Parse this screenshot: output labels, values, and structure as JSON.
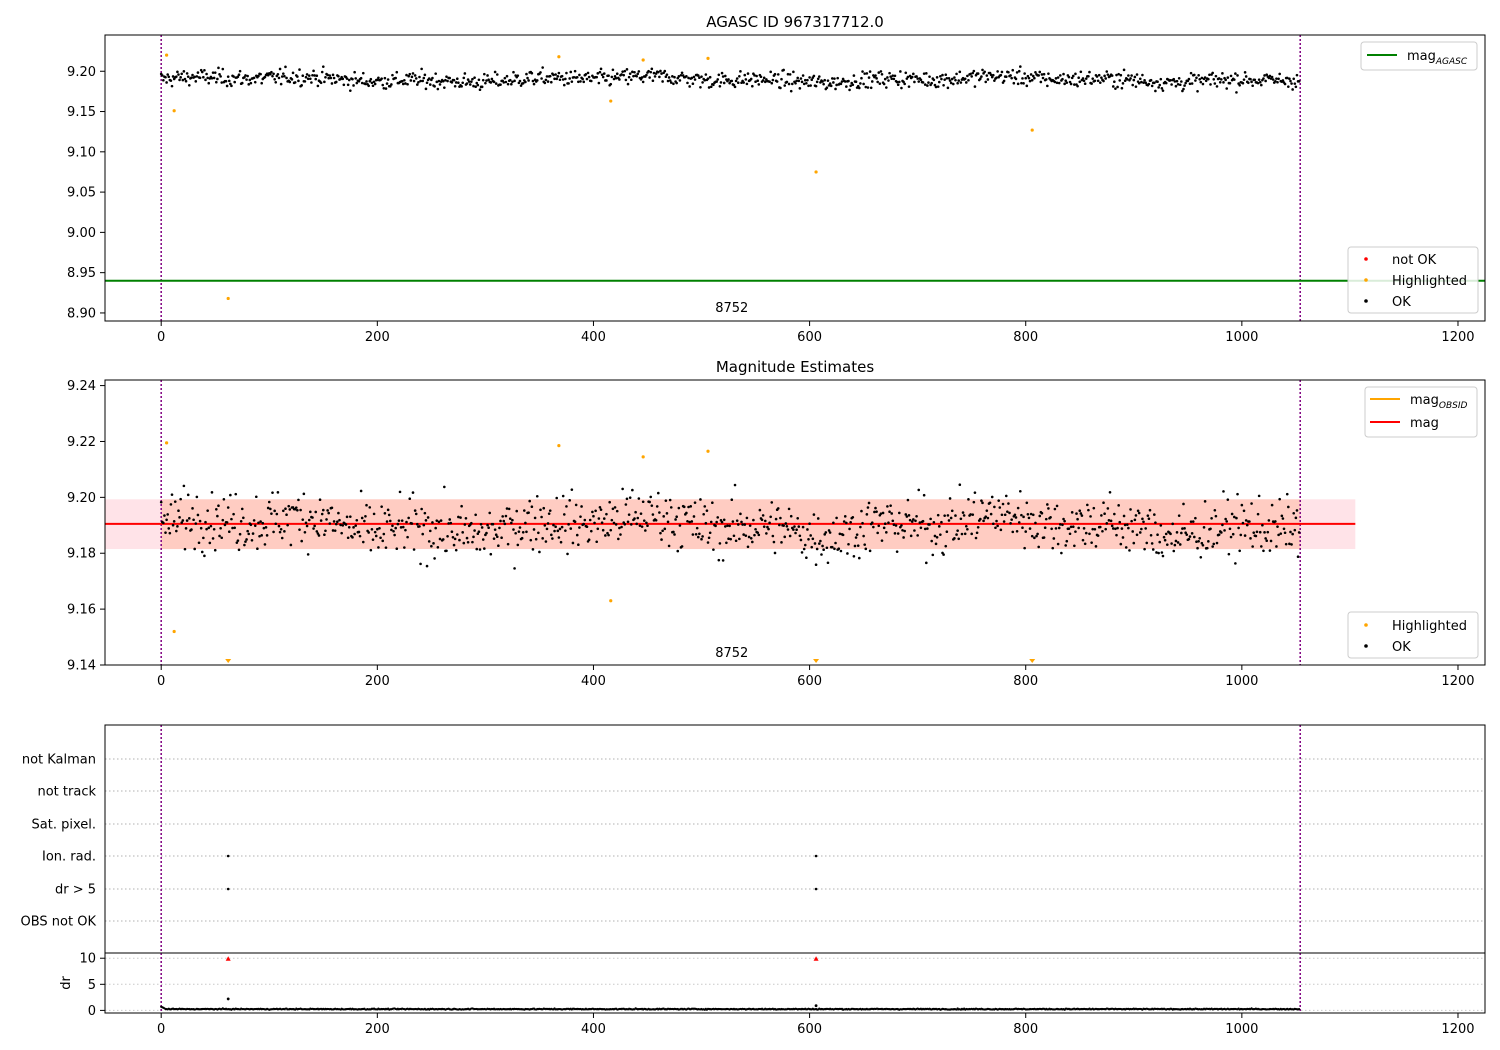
{
  "chart_data": [
    {
      "type": "scatter",
      "title": "AGASC ID 967317712.0",
      "xlim": [
        -52,
        1225
      ],
      "ylim": [
        8.89,
        9.245
      ],
      "xticks": [
        0,
        200,
        400,
        600,
        800,
        1000,
        1200
      ],
      "yticks": [
        8.9,
        8.95,
        9.0,
        9.05,
        9.1,
        9.15,
        9.2
      ],
      "ytick_labels": [
        "8.90",
        "8.95",
        "9.00",
        "9.05",
        "9.10",
        "9.15",
        "9.20"
      ],
      "obsid_text": "8752",
      "obsid_text_x": 528,
      "obs_bounds": [
        0,
        1054
      ],
      "mag_agasc": 8.94,
      "ok_points": {
        "n": 1054,
        "mean": 9.19,
        "spread": 0.0085
      },
      "highlighted_points": [
        {
          "x": 5,
          "y": 9.22
        },
        {
          "x": 12,
          "y": 9.151
        },
        {
          "x": 62,
          "y": 8.918
        },
        {
          "x": 368,
          "y": 9.218
        },
        {
          "x": 416,
          "y": 9.163
        },
        {
          "x": 446,
          "y": 9.214
        },
        {
          "x": 506,
          "y": 9.216
        },
        {
          "x": 606,
          "y": 9.075
        },
        {
          "x": 806,
          "y": 9.127
        }
      ],
      "legend_upper": [
        {
          "label": "mag",
          "sub": "AGASC",
          "color": "#008000"
        }
      ],
      "legend_lower": [
        {
          "label": "not OK",
          "color": "#ff0000"
        },
        {
          "label": "Highlighted",
          "color": "#ffa500"
        },
        {
          "label": "OK",
          "color": "#000000"
        }
      ],
      "legend_upper_pos": "top-right",
      "legend_lower_pos": "bottom-right"
    },
    {
      "type": "scatter",
      "title": "Magnitude Estimates",
      "xlim": [
        -52,
        1225
      ],
      "ylim": [
        9.14,
        9.242
      ],
      "xticks": [
        0,
        200,
        400,
        600,
        800,
        1000,
        1200
      ],
      "yticks": [
        9.14,
        9.16,
        9.18,
        9.2,
        9.22,
        9.24
      ],
      "ytick_labels": [
        "9.14",
        "9.16",
        "9.18",
        "9.20",
        "9.22",
        "9.24"
      ],
      "obsid_text": "8752",
      "obsid_text_x": 528,
      "obs_bounds": [
        0,
        1054
      ],
      "mag": 9.1905,
      "mag_band": [
        9.1815,
        9.1993
      ],
      "mag_obsid": 9.1905,
      "mag_obsid_band": [
        9.1815,
        9.1993
      ],
      "band_extent": [
        0,
        1105
      ],
      "ok_points": {
        "n": 1054,
        "mean": 9.19,
        "spread": 0.0085
      },
      "highlighted_points": [
        {
          "x": 5,
          "y": 9.2195
        },
        {
          "x": 12,
          "y": 9.152
        },
        {
          "x": 368,
          "y": 9.2185
        },
        {
          "x": 416,
          "y": 9.163
        },
        {
          "x": 446,
          "y": 9.2145
        },
        {
          "x": 506,
          "y": 9.2165
        }
      ],
      "offscale_points": [
        {
          "x": 62
        },
        {
          "x": 606
        },
        {
          "x": 806
        }
      ],
      "legend_upper": [
        {
          "label": "mag",
          "sub": "OBSID",
          "color": "#ffa500"
        },
        {
          "label": "mag",
          "sub": "",
          "color": "#ff0000"
        }
      ],
      "legend_lower": [
        {
          "label": "Highlighted",
          "color": "#ffa500"
        },
        {
          "label": "OK",
          "color": "#000000"
        }
      ],
      "legend_upper_pos": "top-right",
      "legend_lower_pos": "bottom-right"
    },
    {
      "type": "scatter",
      "xlim": [
        -52,
        1225
      ],
      "xticks": [
        0,
        200,
        400,
        600,
        800,
        1000,
        1200
      ],
      "obs_bounds": [
        0,
        1054
      ],
      "flag_rows": [
        "not Kalman",
        "not track",
        "Sat. pixel.",
        "Ion. rad.",
        "dr > 5",
        "OBS not OK"
      ],
      "flag_points": [
        {
          "row": "Ion. rad.",
          "x": [
            62,
            606
          ]
        },
        {
          "row": "dr > 5",
          "x": [
            62,
            606
          ]
        }
      ],
      "dr_ylabel": "dr",
      "dr_ylim": [
        -0.5,
        11
      ],
      "dr_yticks": [
        0,
        5,
        10
      ],
      "dr_points": {
        "n": 1054,
        "base": 0.25,
        "spread": 0.08
      },
      "dr_outliers": [
        {
          "x": 62,
          "y": 2.2
        },
        {
          "x": 606,
          "y": 0.9
        }
      ],
      "dr_capped": [
        {
          "x": 62,
          "y": 10
        },
        {
          "x": 606,
          "y": 10
        }
      ]
    }
  ],
  "colors": {
    "ok": "#000000",
    "highlighted": "#ffa500",
    "not_ok": "#ff0000",
    "mag_agasc": "#008000",
    "mag": "#ff0000",
    "mag_obsid": "#ffa500",
    "obs_bound": "#800080",
    "band_mag": "#ffc0cb",
    "band_obsid": "#ffa07a"
  }
}
